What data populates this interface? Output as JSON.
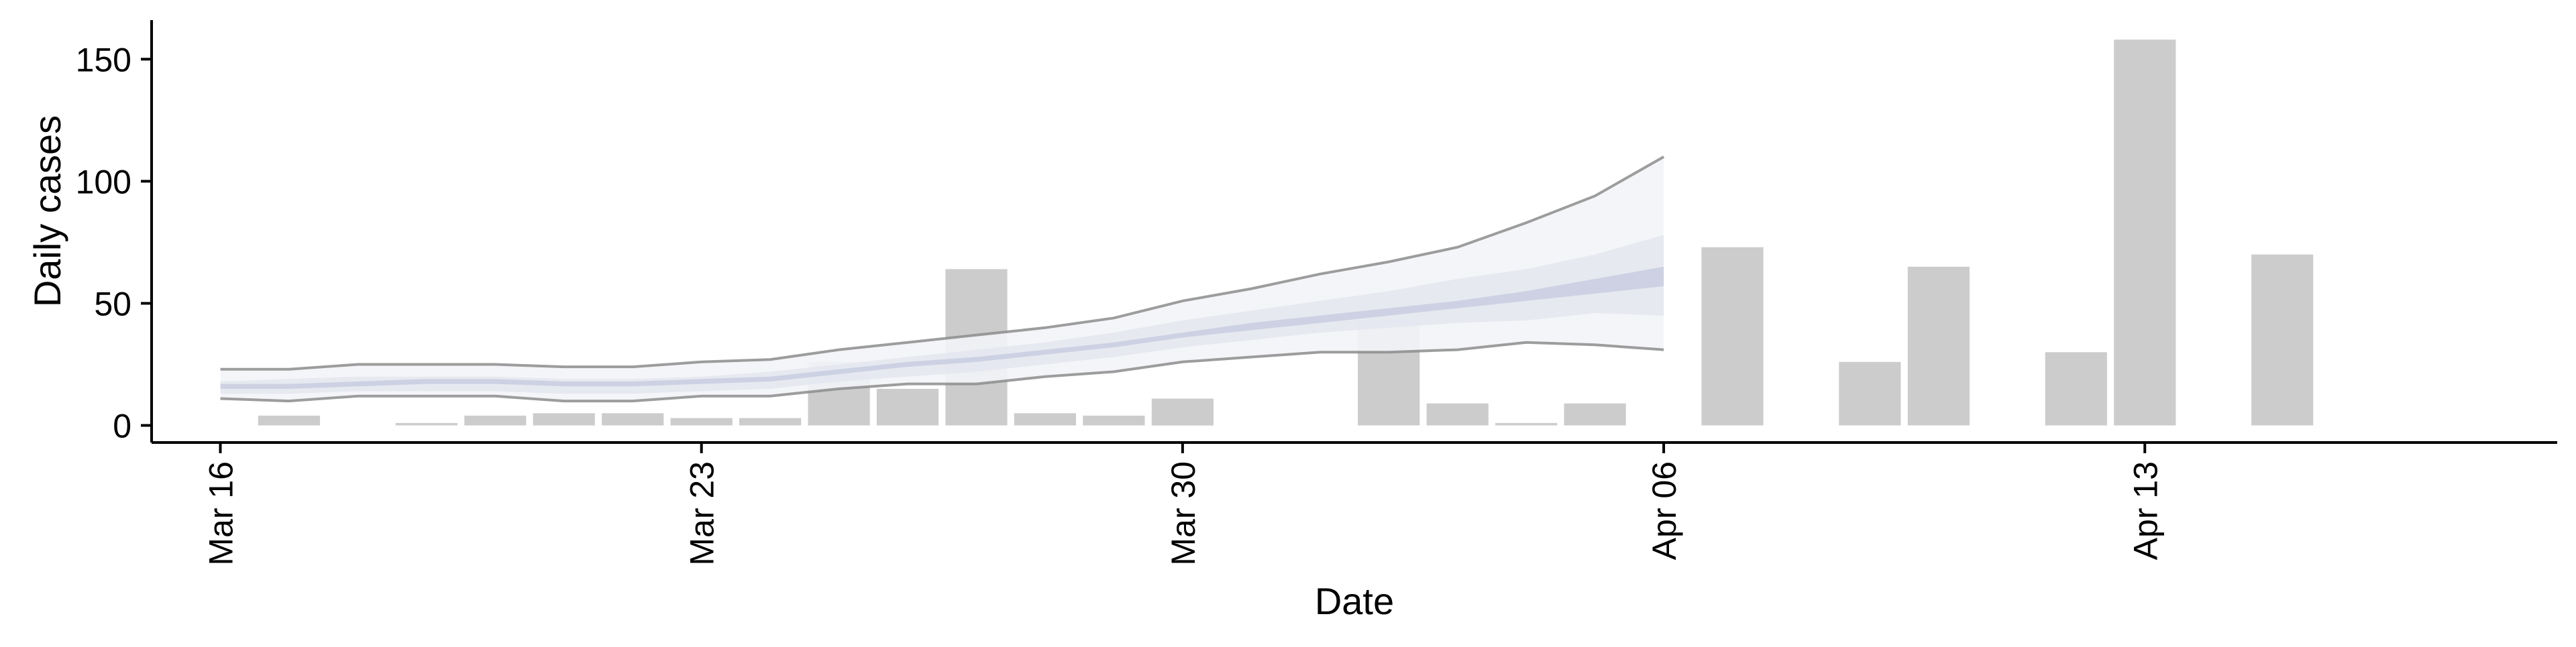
{
  "chart_data": {
    "type": "bar",
    "title": "",
    "xlabel": "Date",
    "ylabel": "Daily cases",
    "ylim": [
      -7,
      166
    ],
    "xlim": [
      "2020-03-15",
      "2020-04-19"
    ],
    "grid": false,
    "legend": "none",
    "y_ticks": [
      0,
      50,
      100,
      150
    ],
    "y_tick_labels": [
      "0",
      "50",
      "100",
      "150"
    ],
    "x_ticks": [
      "2020-03-16",
      "2020-03-23",
      "2020-03-30",
      "2020-04-06",
      "2020-04-13"
    ],
    "x_tick_labels": [
      "Mar 16",
      "Mar 23",
      "Mar 30",
      "Apr 06",
      "Apr 13"
    ],
    "series": [
      {
        "type": "bar",
        "x": [
          "2020-03-16",
          "2020-03-17",
          "2020-03-18",
          "2020-03-19",
          "2020-03-20",
          "2020-03-21",
          "2020-03-22",
          "2020-03-23",
          "2020-03-24",
          "2020-03-25",
          "2020-03-26",
          "2020-03-27",
          "2020-03-28",
          "2020-03-29",
          "2020-03-30",
          "2020-03-31",
          "2020-04-01",
          "2020-04-02",
          "2020-04-03",
          "2020-04-04",
          "2020-04-05",
          "2020-04-06",
          "2020-04-07",
          "2020-04-08",
          "2020-04-09",
          "2020-04-10",
          "2020-04-11",
          "2020-04-12",
          "2020-04-13",
          "2020-04-14",
          "2020-04-15"
        ],
        "values": [
          0,
          4,
          0,
          1,
          4,
          5,
          5,
          3,
          3,
          26,
          15,
          64,
          5,
          4,
          11,
          0,
          0,
          43,
          9,
          1,
          9,
          0,
          73,
          0,
          26,
          65,
          0,
          30,
          158,
          0,
          70
        ]
      },
      {
        "type": "band",
        "x": [
          "2020-03-16",
          "2020-03-17",
          "2020-03-18",
          "2020-03-19",
          "2020-03-20",
          "2020-03-21",
          "2020-03-22",
          "2020-03-23",
          "2020-03-24",
          "2020-03-25",
          "2020-03-26",
          "2020-03-27",
          "2020-03-28",
          "2020-03-29",
          "2020-03-30",
          "2020-03-31",
          "2020-04-01",
          "2020-04-02",
          "2020-04-03",
          "2020-04-04",
          "2020-04-05",
          "2020-04-06"
        ],
        "lower_90": [
          11,
          10,
          12,
          12,
          12,
          10,
          10,
          12,
          12,
          15,
          17,
          17,
          20,
          22,
          26,
          28,
          30,
          30,
          31,
          34,
          33,
          31
        ],
        "upper_90": [
          23,
          23,
          25,
          25,
          25,
          24,
          24,
          26,
          27,
          31,
          34,
          37,
          40,
          44,
          51,
          56,
          62,
          67,
          73,
          83,
          94,
          110
        ],
        "lower_50": [
          13,
          13,
          14,
          14,
          14,
          13,
          13,
          14,
          15,
          18,
          20,
          22,
          25,
          28,
          32,
          35,
          38,
          40,
          42,
          43,
          46,
          45
        ],
        "upper_50": [
          18,
          19,
          20,
          20,
          20,
          19,
          19,
          20,
          22,
          25,
          28,
          31,
          34,
          38,
          43,
          47,
          51,
          55,
          60,
          64,
          70,
          78
        ],
        "lower_20": [
          15,
          15,
          16,
          17,
          17,
          16,
          16,
          17,
          18,
          21,
          24,
          26,
          29,
          32,
          36,
          39,
          42,
          45,
          48,
          51,
          54,
          57
        ],
        "upper_20": [
          17,
          17,
          18,
          19,
          19,
          18,
          18,
          19,
          20,
          23,
          26,
          28,
          31,
          34,
          38,
          42,
          45,
          48,
          51,
          55,
          60,
          65
        ]
      }
    ],
    "colors": {
      "bars": "#cccccc",
      "band_outer": "#f3f4f7",
      "band_middle": "#e3e6ef",
      "band_inner": "#c8cde0",
      "band_border": "#8c8c8c",
      "axis": "#000000"
    }
  }
}
